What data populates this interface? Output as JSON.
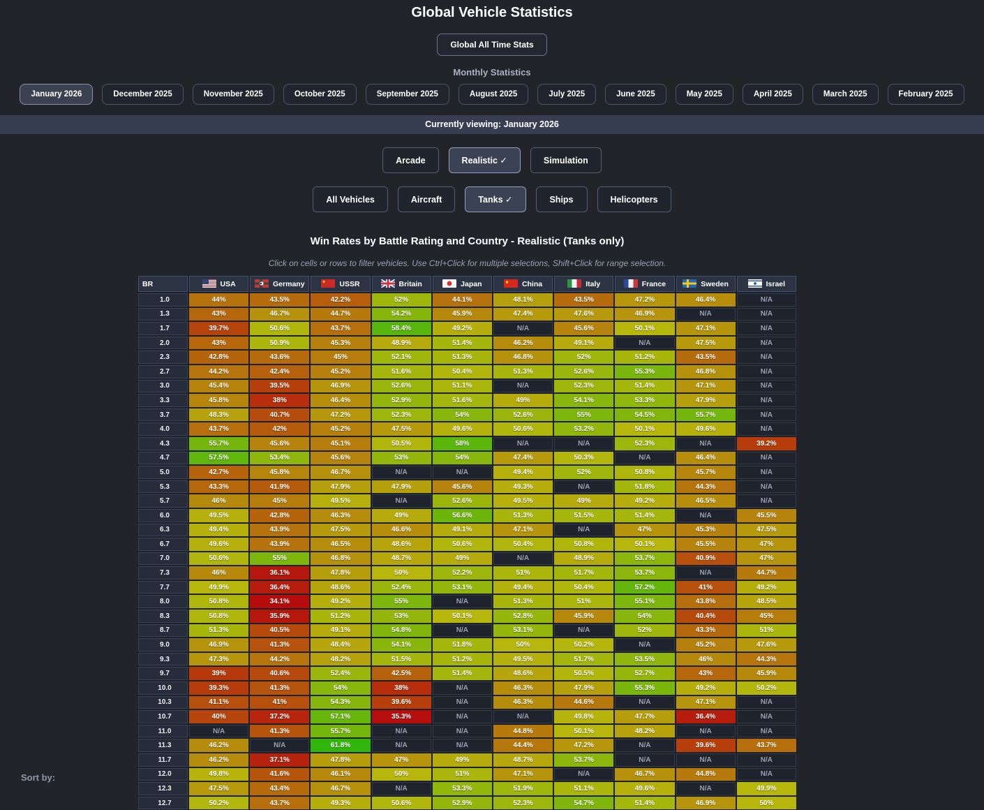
{
  "page": {
    "title": "Global Vehicle Statistics",
    "all_time_button": "Global All Time Stats",
    "monthly_label": "Monthly Statistics",
    "viewing_bar": "Currently viewing: January 2026",
    "sort_by_label": "Sort by:",
    "checkmark": "✓"
  },
  "months": {
    "selected": "January 2026",
    "items": [
      "January 2026",
      "December 2025",
      "November 2025",
      "October 2025",
      "September 2025",
      "August 2025",
      "July 2025",
      "June 2025",
      "May 2025",
      "April 2025",
      "March 2025",
      "February 2025"
    ]
  },
  "modes": {
    "selected": "Realistic",
    "items": [
      "Arcade",
      "Realistic",
      "Simulation"
    ]
  },
  "vehicle_types": {
    "selected": "Tanks",
    "items": [
      "All Vehicles",
      "Aircraft",
      "Tanks",
      "Ships",
      "Helicopters"
    ]
  },
  "heatmap": {
    "title": "Win Rates by Battle Rating and Country - Realistic (Tanks only)",
    "subtitle": "Click on cells or rows to filter vehicles. Use Ctrl+Click for multiple selections, Shift+Click for range selection.",
    "br_header": "BR",
    "na_label": "N/A",
    "color_scale": {
      "min_value": 35,
      "max_value": 65,
      "min_hue": 0,
      "max_hue": 120,
      "saturation": 88,
      "lightness": 38,
      "na_background": "#1e232d"
    },
    "countries": [
      {
        "name": "USA",
        "flag": "usa"
      },
      {
        "name": "Germany",
        "flag": "germany"
      },
      {
        "name": "USSR",
        "flag": "ussr"
      },
      {
        "name": "Britain",
        "flag": "britain"
      },
      {
        "name": "Japan",
        "flag": "japan"
      },
      {
        "name": "China",
        "flag": "china"
      },
      {
        "name": "Italy",
        "flag": "italy"
      },
      {
        "name": "France",
        "flag": "france"
      },
      {
        "name": "Sweden",
        "flag": "sweden"
      },
      {
        "name": "Israel",
        "flag": "israel"
      }
    ],
    "rows": [
      {
        "br": "1.0",
        "values": [
          "44%",
          "43.5%",
          "42.2%",
          "52%",
          "44.1%",
          "48.1%",
          "43.5%",
          "47.2%",
          "46.4%",
          "N/A"
        ]
      },
      {
        "br": "1.3",
        "values": [
          "43%",
          "46.7%",
          "44.7%",
          "54.2%",
          "45.9%",
          "47.4%",
          "47.6%",
          "46.9%",
          "N/A",
          "N/A"
        ]
      },
      {
        "br": "1.7",
        "values": [
          "39.7%",
          "50.6%",
          "43.7%",
          "58.4%",
          "49.2%",
          "N/A",
          "45.6%",
          "50.1%",
          "47.1%",
          "N/A"
        ]
      },
      {
        "br": "2.0",
        "values": [
          "43%",
          "50.9%",
          "45.3%",
          "48.9%",
          "51.4%",
          "46.2%",
          "49.1%",
          "N/A",
          "47.5%",
          "N/A"
        ]
      },
      {
        "br": "2.3",
        "values": [
          "42.8%",
          "43.6%",
          "45%",
          "52.1%",
          "51.3%",
          "46.8%",
          "52%",
          "51.2%",
          "43.5%",
          "N/A"
        ]
      },
      {
        "br": "2.7",
        "values": [
          "44.2%",
          "42.4%",
          "45.2%",
          "51.6%",
          "50.4%",
          "51.3%",
          "52.6%",
          "55.3%",
          "46.8%",
          "N/A"
        ]
      },
      {
        "br": "3.0",
        "values": [
          "45.4%",
          "39.5%",
          "46.9%",
          "52.6%",
          "51.1%",
          "N/A",
          "52.3%",
          "51.4%",
          "47.1%",
          "N/A"
        ]
      },
      {
        "br": "3.3",
        "values": [
          "45.8%",
          "38%",
          "46.4%",
          "52.9%",
          "51.6%",
          "49%",
          "54.1%",
          "53.3%",
          "47.9%",
          "N/A"
        ]
      },
      {
        "br": "3.7",
        "values": [
          "48.3%",
          "40.7%",
          "47.2%",
          "52.3%",
          "54%",
          "52.6%",
          "55%",
          "54.5%",
          "55.7%",
          "N/A"
        ]
      },
      {
        "br": "4.0",
        "values": [
          "43.7%",
          "42%",
          "45.2%",
          "47.5%",
          "49.6%",
          "50.6%",
          "53.2%",
          "50.1%",
          "49.6%",
          "N/A"
        ]
      },
      {
        "br": "4.3",
        "values": [
          "55.7%",
          "45.6%",
          "45.1%",
          "50.5%",
          "58%",
          "N/A",
          "N/A",
          "52.3%",
          "N/A",
          "39.2%"
        ]
      },
      {
        "br": "4.7",
        "values": [
          "57.5%",
          "53.4%",
          "45.6%",
          "53%",
          "54%",
          "47.4%",
          "50.3%",
          "N/A",
          "46.4%",
          "N/A"
        ]
      },
      {
        "br": "5.0",
        "values": [
          "42.7%",
          "45.8%",
          "46.7%",
          "N/A",
          "N/A",
          "49.4%",
          "52%",
          "50.8%",
          "45.7%",
          "N/A"
        ]
      },
      {
        "br": "5.3",
        "values": [
          "43.3%",
          "41.9%",
          "47.9%",
          "47.9%",
          "45.6%",
          "49.3%",
          "N/A",
          "51.8%",
          "44.3%",
          "N/A"
        ]
      },
      {
        "br": "5.7",
        "values": [
          "46%",
          "45%",
          "49.5%",
          "N/A",
          "52.6%",
          "49.5%",
          "49%",
          "49.2%",
          "46.5%",
          "N/A"
        ]
      },
      {
        "br": "6.0",
        "values": [
          "49.5%",
          "42.8%",
          "46.3%",
          "49%",
          "56.6%",
          "51.3%",
          "51.5%",
          "51.4%",
          "N/A",
          "45.5%"
        ]
      },
      {
        "br": "6.3",
        "values": [
          "49.4%",
          "43.9%",
          "47.5%",
          "46.6%",
          "49.1%",
          "47.1%",
          "N/A",
          "47%",
          "45.3%",
          "47.5%"
        ]
      },
      {
        "br": "6.7",
        "values": [
          "49.6%",
          "43.9%",
          "46.5%",
          "48.6%",
          "50.6%",
          "50.4%",
          "50.8%",
          "50.1%",
          "45.5%",
          "47%"
        ]
      },
      {
        "br": "7.0",
        "values": [
          "50.6%",
          "55%",
          "46.8%",
          "48.7%",
          "49%",
          "N/A",
          "48.9%",
          "53.7%",
          "40.9%",
          "47%"
        ]
      },
      {
        "br": "7.3",
        "values": [
          "46%",
          "36.1%",
          "47.8%",
          "50%",
          "52.2%",
          "51%",
          "51.7%",
          "53.7%",
          "N/A",
          "44.7%"
        ]
      },
      {
        "br": "7.7",
        "values": [
          "49.9%",
          "36.4%",
          "48.6%",
          "52.4%",
          "53.1%",
          "49.4%",
          "50.4%",
          "57.2%",
          "41%",
          "49.2%"
        ]
      },
      {
        "br": "8.0",
        "values": [
          "50.8%",
          "34.1%",
          "49.2%",
          "55%",
          "N/A",
          "51.3%",
          "51%",
          "55.1%",
          "43.8%",
          "48.5%"
        ]
      },
      {
        "br": "8.3",
        "values": [
          "50.8%",
          "35.9%",
          "51.2%",
          "53%",
          "50.1%",
          "52.8%",
          "45.9%",
          "54%",
          "40.4%",
          "45%"
        ]
      },
      {
        "br": "8.7",
        "values": [
          "51.3%",
          "40.5%",
          "49.1%",
          "54.8%",
          "N/A",
          "53.1%",
          "N/A",
          "52%",
          "43.3%",
          "51%"
        ]
      },
      {
        "br": "9.0",
        "values": [
          "46.9%",
          "41.3%",
          "48.4%",
          "54.1%",
          "51.8%",
          "50%",
          "50.2%",
          "N/A",
          "45.2%",
          "47.6%"
        ]
      },
      {
        "br": "9.3",
        "values": [
          "47.3%",
          "44.2%",
          "48.2%",
          "51.5%",
          "51.2%",
          "49.5%",
          "51.7%",
          "53.5%",
          "46%",
          "44.3%"
        ]
      },
      {
        "br": "9.7",
        "values": [
          "39%",
          "40.6%",
          "52.4%",
          "42.5%",
          "51.4%",
          "48.6%",
          "50.5%",
          "52.7%",
          "43%",
          "45.9%"
        ]
      },
      {
        "br": "10.0",
        "values": [
          "39.3%",
          "41.3%",
          "54%",
          "38%",
          "N/A",
          "46.3%",
          "47.9%",
          "55.3%",
          "49.2%",
          "50.2%"
        ]
      },
      {
        "br": "10.3",
        "values": [
          "41.1%",
          "41%",
          "54.3%",
          "39.6%",
          "N/A",
          "46.3%",
          "44.6%",
          "N/A",
          "47.1%",
          "N/A"
        ]
      },
      {
        "br": "10.7",
        "values": [
          "40%",
          "37.2%",
          "57.1%",
          "35.3%",
          "N/A",
          "N/A",
          "49.8%",
          "47.7%",
          "36.4%",
          "N/A"
        ]
      },
      {
        "br": "11.0",
        "values": [
          "N/A",
          "41.3%",
          "55.7%",
          "N/A",
          "N/A",
          "44.8%",
          "50.1%",
          "48.2%",
          "N/A",
          "N/A"
        ]
      },
      {
        "br": "11.3",
        "values": [
          "46.2%",
          "N/A",
          "61.8%",
          "N/A",
          "N/A",
          "44.4%",
          "47.2%",
          "N/A",
          "39.6%",
          "43.7%"
        ]
      },
      {
        "br": "11.7",
        "values": [
          "46.2%",
          "37.1%",
          "47.8%",
          "47%",
          "49%",
          "48.7%",
          "53.7%",
          "N/A",
          "N/A",
          "N/A"
        ]
      },
      {
        "br": "12.0",
        "values": [
          "49.8%",
          "41.6%",
          "46.1%",
          "50%",
          "51%",
          "47.1%",
          "N/A",
          "46.7%",
          "44.8%",
          "N/A"
        ]
      },
      {
        "br": "12.3",
        "values": [
          "47.5%",
          "43.4%",
          "46.7%",
          "N/A",
          "53.3%",
          "51.9%",
          "51.1%",
          "49.6%",
          "N/A",
          "49.9%"
        ]
      },
      {
        "br": "12.7",
        "values": [
          "50.2%",
          "43.7%",
          "49.3%",
          "50.6%",
          "52.9%",
          "52.3%",
          "54.7%",
          "51.4%",
          "46.9%",
          "50%"
        ]
      }
    ]
  }
}
